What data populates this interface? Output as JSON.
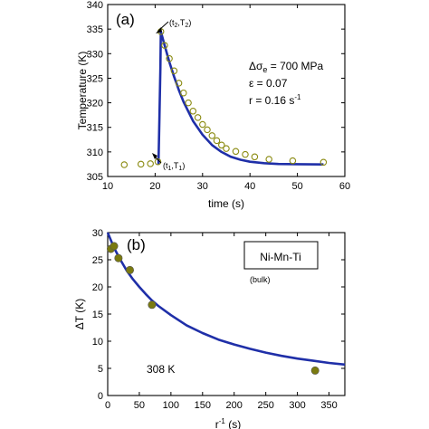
{
  "chart_data": [
    {
      "type": "scatter",
      "panel_label": "(a)",
      "xlabel": "time (s)",
      "ylabel": "Temperature (K)",
      "xlim": [
        10,
        60
      ],
      "ylim": [
        305,
        340
      ],
      "xticks": [
        "10",
        "20",
        "30",
        "40",
        "50",
        "60"
      ],
      "yticks": [
        "305",
        "310",
        "315",
        "320",
        "325",
        "330",
        "335",
        "340"
      ],
      "annotations": [
        {
          "text": "Δσe = 700 MPa"
        },
        {
          "text": "ε = 0.07"
        },
        {
          "text": "r = 0.16 s-1"
        }
      ],
      "point_labels": [
        {
          "text": "(t2,T2)",
          "x": 21.2,
          "y": 334.5
        },
        {
          "text": "(t1,T1)",
          "x": 20.7,
          "y": 307.5
        }
      ],
      "series": [
        {
          "kind": "points",
          "color": "#8a8a10",
          "x": [
            13.5,
            17.0,
            19.0,
            20.6,
            21.2,
            22.0,
            23.0,
            24.0,
            25.0,
            26.0,
            27.0,
            28.0,
            29.0,
            30.0,
            31.0,
            32.0,
            33.0,
            34.0,
            35.0,
            37.0,
            39.0,
            41.0,
            44.0,
            49.0,
            55.5
          ],
          "y": [
            307.4,
            307.5,
            307.6,
            308.0,
            334.5,
            331.7,
            329.0,
            326.5,
            324.0,
            322.0,
            320.0,
            318.3,
            317.0,
            315.6,
            314.5,
            313.3,
            312.3,
            311.4,
            310.7,
            310.1,
            309.5,
            309.0,
            308.5,
            308.2,
            307.9
          ]
        },
        {
          "kind": "line",
          "color": "#1f2fa8",
          "x": [
            20.7,
            20.9,
            21.1,
            21.2,
            22.0,
            23.0,
            24.0,
            25.0,
            26.0,
            28.0,
            30.0,
            32.0,
            34.0,
            36.0,
            38.0,
            40.0,
            43.0,
            46.0,
            50.0,
            55.5
          ],
          "y": [
            307.5,
            316.5,
            327.0,
            334.5,
            331.7,
            328.3,
            325.3,
            322.6,
            320.2,
            316.3,
            313.5,
            311.4,
            310.0,
            309.0,
            308.4,
            308.0,
            307.7,
            307.55,
            307.5,
            307.45
          ]
        }
      ]
    },
    {
      "type": "scatter",
      "panel_label": "(b)",
      "xlabel": "r-1 (s)",
      "ylabel": "ΔT (K)",
      "xlim": [
        0,
        375
      ],
      "ylim": [
        0,
        30
      ],
      "xticks": [
        "0",
        "50",
        "100",
        "150",
        "200",
        "250",
        "300",
        "350"
      ],
      "yticks": [
        "0",
        "5",
        "10",
        "15",
        "20",
        "25",
        "30"
      ],
      "legend_box": "Ni-Mn-Ti",
      "legend_sub": "(bulk)",
      "annotation": "308 K",
      "series": [
        {
          "kind": "points",
          "color": "#7a7a10",
          "x": [
            5,
            10,
            17,
            35,
            70,
            328
          ],
          "y": [
            27.0,
            27.5,
            25.3,
            23.1,
            16.7,
            4.6
          ]
        },
        {
          "kind": "line",
          "color": "#1f2fa8",
          "x": [
            0,
            10,
            20,
            30,
            40,
            50,
            60,
            70,
            80,
            100,
            125,
            150,
            175,
            200,
            225,
            250,
            275,
            300,
            325,
            350,
            375
          ],
          "y": [
            30.0,
            27.2,
            25.0,
            23.0,
            21.4,
            20.0,
            18.7,
            17.5,
            16.5,
            14.8,
            12.9,
            11.5,
            10.3,
            9.4,
            8.6,
            7.9,
            7.3,
            6.8,
            6.4,
            6.0,
            5.7
          ]
        }
      ]
    }
  ]
}
